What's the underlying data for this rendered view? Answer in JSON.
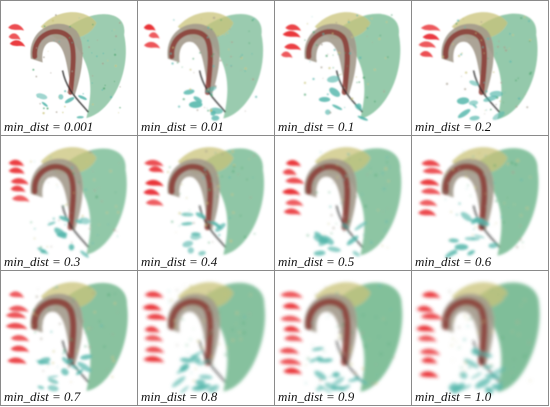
{
  "figure": {
    "panels": [
      {
        "label": "min_dist = 0.001",
        "min_dist": 0.001
      },
      {
        "label": "min_dist = 0.01",
        "min_dist": 0.01
      },
      {
        "label": "min_dist = 0.1",
        "min_dist": 0.1
      },
      {
        "label": "min_dist = 0.2",
        "min_dist": 0.2
      },
      {
        "label": "min_dist = 0.3",
        "min_dist": 0.3
      },
      {
        "label": "min_dist = 0.4",
        "min_dist": 0.4
      },
      {
        "label": "min_dist = 0.5",
        "min_dist": 0.5
      },
      {
        "label": "min_dist = 0.6",
        "min_dist": 0.6
      },
      {
        "label": "min_dist = 0.7",
        "min_dist": 0.7
      },
      {
        "label": "min_dist = 0.8",
        "min_dist": 0.8
      },
      {
        "label": "min_dist = 0.9",
        "min_dist": 0.9
      },
      {
        "label": "min_dist = 1.0",
        "min_dist": 1.0
      }
    ]
  },
  "colors": {
    "red_cluster": "#e8262b",
    "maroon_core": "#8a3a34",
    "taupe_shell": "#a39a8c",
    "olive_yellow": "#c9c37a",
    "green_wing": "#4aa36e",
    "teal_spray": "#56b7ac",
    "dark_trail": "#2b2b2b",
    "panel_border": "#8a8a8a",
    "caption_text": "#111111"
  }
}
